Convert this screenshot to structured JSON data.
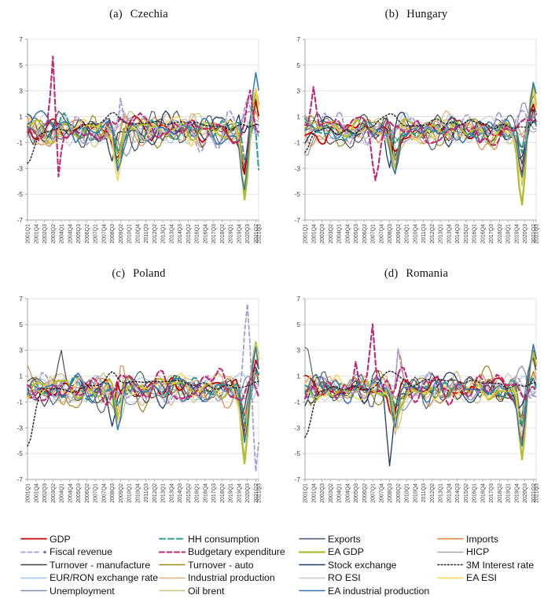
{
  "page": {
    "background": "#ffffff"
  },
  "chart_data": {
    "type": "line",
    "layout": "2x2-grid",
    "x_start": "2001Q1",
    "x_end": "2021Q3",
    "x_count": 83,
    "x_tick_labels": [
      "2001Q1",
      "2001Q4",
      "2002Q3",
      "2003Q2",
      "2004Q1",
      "2004Q4",
      "2005Q3",
      "2006Q2",
      "2007Q1",
      "2007Q4",
      "2008Q3",
      "2009Q2",
      "2010Q1",
      "2010Q4",
      "2011Q3",
      "2012Q2",
      "2013Q1",
      "2013Q4",
      "2014Q3",
      "2015Q2",
      "2016Q1",
      "2016Q4",
      "2017Q3",
      "2018Q2",
      "2019Q1",
      "2019Q4",
      "2020Q3",
      "2021Q2",
      "2021Q3"
    ],
    "y_ticks": [
      7,
      5,
      3,
      1,
      -1,
      -3,
      -5,
      -7
    ],
    "ylim": [
      -7,
      7
    ],
    "grid": "horizontal-light",
    "axis_color": "#a6a6a6",
    "grid_color": "#dcdcdc",
    "tick_label_color": "#404040",
    "note": "Standardized quarterly macro indicators per country; line values approximated from pixels (chaotic multi-series around 0, 2008-09 trough, 2020 COVID trough and 2021 rebound)",
    "series_defs": [
      {
        "id": "gdp",
        "label": "GDP",
        "color": "#c00000",
        "width": 1.7,
        "dash": "",
        "amp": 0.75
      },
      {
        "id": "hh_consumption",
        "label": "HH consumption",
        "color": "#2e9b8b",
        "width": 2.1,
        "dash": "7,4",
        "amp": 0.7
      },
      {
        "id": "exports",
        "label": "Exports",
        "color": "#44546a",
        "width": 1.1,
        "dash": "",
        "amp": 1.0
      },
      {
        "id": "imports",
        "label": "Imports",
        "color": "#e07b3e",
        "width": 1.1,
        "dash": "",
        "amp": 1.0
      },
      {
        "id": "fiscal_revenue",
        "label": "Fiscal revenue",
        "color": "#a99bd5",
        "width": 1.8,
        "dash": "5,3.5",
        "marker": true,
        "amp": 1.1
      },
      {
        "id": "budgetary_expenditure",
        "label": "Budgetary expenditure",
        "color": "#c02973",
        "width": 2.1,
        "dash": "6,3.5",
        "amp": 1.1
      },
      {
        "id": "ea_gdp",
        "label": "EA GDP",
        "color": "#aebe2f",
        "width": 2.3,
        "dash": "",
        "amp": 0.7
      },
      {
        "id": "hicp",
        "label": "HICP",
        "color": "#a6a6a6",
        "width": 1.1,
        "dash": "",
        "amp": 0.6
      },
      {
        "id": "turnover_manufacture",
        "label": "Turnover - manufacture",
        "color": "#3f3f3f",
        "width": 1.1,
        "dash": "",
        "amp": 1.0
      },
      {
        "id": "turnover_auto",
        "label": "Turnover - auto",
        "color": "#9d861a",
        "width": 1.2,
        "dash": "",
        "amp": 1.0
      },
      {
        "id": "stock_exchange",
        "label": "Stock exchange",
        "color": "#1f3864",
        "width": 1.3,
        "dash": "",
        "amp": 0.9
      },
      {
        "id": "interest_rate_3m",
        "label": "3M Interest rate",
        "color": "#262626",
        "width": 1.5,
        "dash": "1.6,2.6",
        "amp": 0.22
      },
      {
        "id": "eur_ron",
        "label": "EUR/RON exchange rate",
        "color": "#9dc3e6",
        "width": 1.1,
        "dash": "",
        "amp": 0.85
      },
      {
        "id": "industrial_production",
        "label": "Industrial production",
        "color": "#dbb17c",
        "width": 1.2,
        "dash": "",
        "amp": 1.0
      },
      {
        "id": "ro_esi",
        "label": "RO ESI",
        "color": "#c9c9c9",
        "width": 1.1,
        "dash": "",
        "amp": 0.8
      },
      {
        "id": "ea_esi",
        "label": "EA ESI",
        "color": "#ffd34d",
        "width": 1.5,
        "dash": "",
        "amp": 0.8
      },
      {
        "id": "unemployment",
        "label": "Unemployment",
        "color": "#7f8fb4",
        "width": 1.2,
        "dash": "",
        "amp": 0.75
      },
      {
        "id": "oil_brent",
        "label": "Oil brent",
        "color": "#c4c57a",
        "width": 1.2,
        "dash": "",
        "amp": 0.9
      },
      {
        "id": "ea_industrial_production",
        "label": "EA industrial production",
        "color": "#2e75b6",
        "width": 1.5,
        "dash": "",
        "amp": 0.8
      }
    ],
    "draw_order": [
      "ro_esi",
      "hicp",
      "eur_ron",
      "oil_brent",
      "industrial_production",
      "turnover_auto",
      "unemployment",
      "exports",
      "imports",
      "turnover_manufacture",
      "stock_exchange",
      "gdp",
      "hh_consumption",
      "ea_gdp",
      "ea_esi",
      "ea_industrial_production",
      "fiscal_revenue",
      "budgetary_expenditure",
      "interest_rate_3m"
    ],
    "common_events": {
      "gdp": [
        [
          31,
          -1.5
        ],
        [
          33,
          -1.0
        ],
        [
          77,
          -3.4
        ],
        [
          81,
          2.0
        ]
      ],
      "hh_consumption": [
        [
          32,
          -1.6
        ],
        [
          77,
          -2.6
        ],
        [
          81,
          1.2
        ]
      ],
      "exports": [
        [
          32,
          -2.6
        ],
        [
          77,
          -2.8
        ],
        [
          81,
          2.0
        ]
      ],
      "imports": [
        [
          32,
          -2.3
        ],
        [
          77,
          -2.5
        ],
        [
          81,
          1.8
        ]
      ],
      "fiscal_revenue": [
        [
          32,
          -1.2
        ],
        [
          78,
          1.2
        ]
      ],
      "budgetary_expenditure": [
        [
          33,
          1.2
        ]
      ],
      "ea_gdp": [
        [
          32,
          -2.6
        ],
        [
          77,
          -5.5
        ],
        [
          81,
          3.2
        ]
      ],
      "hicp": [
        [
          77,
          -0.8
        ]
      ],
      "turnover_manufacture": [
        [
          32,
          -2.6
        ],
        [
          77,
          -2.8
        ],
        [
          81,
          2.0
        ]
      ],
      "turnover_auto": [
        [
          32,
          -2.2
        ],
        [
          77,
          -3.0
        ],
        [
          81,
          2.2
        ]
      ],
      "stock_exchange": [
        [
          30,
          -3.1
        ],
        [
          76,
          -1.8
        ],
        [
          81,
          1.2
        ]
      ],
      "interest_rate_3m": [
        [
          30,
          1.1,
          2.5
        ],
        [
          50,
          0.6,
          14
        ],
        [
          82,
          0.6,
          2
        ]
      ],
      "eur_ron": [
        [
          33,
          1.0,
          2
        ],
        [
          77,
          0.8,
          1.5
        ]
      ],
      "industrial_production": [
        [
          32,
          -2.8
        ],
        [
          77,
          -3.2
        ],
        [
          81,
          1.8
        ]
      ],
      "ro_esi": [
        [
          32,
          -2.6
        ],
        [
          77,
          -3.4
        ],
        [
          81,
          2.4
        ]
      ],
      "ea_esi": [
        [
          32,
          -3.0
        ],
        [
          77,
          -4.0
        ],
        [
          81,
          3.6
        ]
      ],
      "unemployment": [
        [
          35,
          -1.3,
          3
        ],
        [
          78,
          1.6,
          2
        ]
      ],
      "oil_brent": [
        [
          33,
          -2.2
        ],
        [
          77,
          -4.4
        ],
        [
          81,
          1.8
        ]
      ],
      "ea_industrial_production": [
        [
          32,
          -3.4
        ],
        [
          77,
          -4.6
        ],
        [
          81,
          4.0
        ]
      ]
    },
    "charts": [
      {
        "id": "a",
        "title_prefix": "(a)",
        "title_region": "Czechia",
        "events": {
          "interest_rate_3m": [
            [
              0,
              -2.6,
              2.2
            ]
          ],
          "budgetary_expenditure": [
            [
              9,
              4.6,
              0.7
            ],
            [
              11,
              -4.0,
              0.7
            ],
            [
              79,
              2.6,
              0.9
            ]
          ],
          "fiscal_revenue": [
            [
              33,
              3.6,
              0.8
            ]
          ],
          "hh_consumption": [
            [
              82,
              -3.6,
              0.7
            ]
          ],
          "stock_exchange": [
            [
              75,
              2.2,
              0.9
            ]
          ]
        }
      },
      {
        "id": "b",
        "title_prefix": "(b)",
        "title_region": "Hungary",
        "events": {
          "interest_rate_3m": [
            [
              0,
              -1.8,
              2.0
            ]
          ],
          "budgetary_expenditure": [
            [
              3,
              3.0,
              0.8
            ],
            [
              25,
              -2.6,
              1.0
            ],
            [
              62,
              -1.8,
              1.0
            ]
          ],
          "imports": [
            [
              32,
              3.4,
              0.9
            ]
          ],
          "unemployment": [
            [
              0,
              -2.8,
              1.5
            ]
          ]
        }
      },
      {
        "id": "c",
        "title_prefix": "(c)",
        "title_region": "Poland",
        "events": {
          "interest_rate_3m": [
            [
              0,
              -4.3,
              2.2
            ]
          ],
          "fiscal_revenue": [
            [
              78,
              4.8,
              0.9
            ],
            [
              81,
              -4.4,
              0.8
            ]
          ],
          "gdp": [
            [
              32,
              2.6,
              0.8
            ]
          ],
          "turnover_manufacture": [
            [
              12,
              2.6,
              0.9
            ]
          ],
          "imports": [
            [
              33,
              2.6,
              0.9
            ]
          ]
        }
      },
      {
        "id": "d",
        "title_prefix": "(d)",
        "title_region": "Romania",
        "events": {
          "interest_rate_3m": [
            [
              0,
              -4.0,
              2.2
            ]
          ],
          "budgetary_expenditure": [
            [
              18,
              2.9,
              0.8
            ],
            [
              24,
              4.2,
              0.8
            ]
          ],
          "imports": [
            [
              33,
              3.2,
              0.9
            ]
          ],
          "stock_exchange": [
            [
              30,
              -3.6,
              1.0
            ]
          ],
          "exports": [
            [
              0,
              2.6,
              1.5
            ]
          ],
          "fiscal_revenue": [
            [
              33,
              3.6,
              0.8
            ]
          ]
        }
      }
    ],
    "legend_order": [
      "gdp",
      "hh_consumption",
      "exports",
      "imports",
      "fiscal_revenue",
      "budgetary_expenditure",
      "ea_gdp",
      "hicp",
      "turnover_manufacture",
      "turnover_auto",
      "stock_exchange",
      "interest_rate_3m",
      "eur_ron",
      "industrial_production",
      "ro_esi",
      "ea_esi",
      "unemployment",
      "oil_brent",
      "ea_industrial_production"
    ]
  }
}
